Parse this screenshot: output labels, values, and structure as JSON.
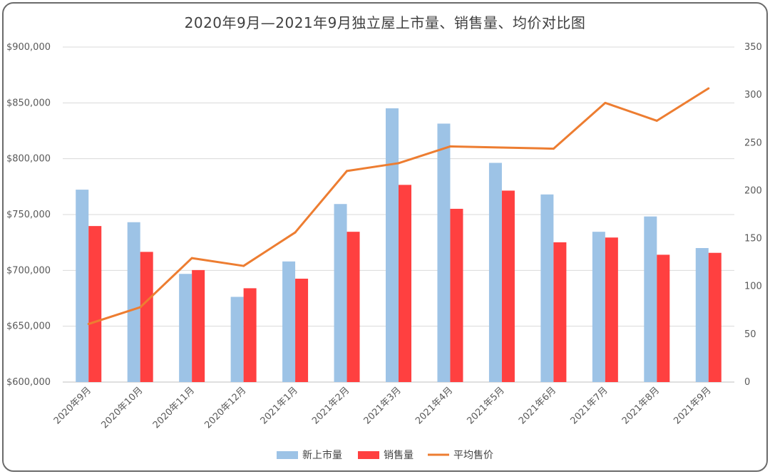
{
  "chart_data": {
    "type": "bar",
    "title": "2020年9月—2021年9月独立屋上市量、销售量、均价对比图",
    "categories": [
      "2020年9月",
      "2020年10月",
      "2020年11月",
      "2020年12月",
      "2021年1月",
      "2021年2月",
      "2021年3月",
      "2021年4月",
      "2021年5月",
      "2021年6月",
      "2021年7月",
      "2021年8月",
      "2021年9月"
    ],
    "series": [
      {
        "name": "新上市量",
        "axis": "right",
        "color": "#9dc3e6",
        "values": [
          201,
          167,
          113,
          89,
          126,
          186,
          286,
          270,
          229,
          196,
          157,
          173,
          140
        ]
      },
      {
        "name": "销售量",
        "axis": "right",
        "color": "#ff4040",
        "values": [
          163,
          136,
          117,
          98,
          108,
          157,
          206,
          181,
          200,
          146,
          151,
          133,
          135
        ]
      },
      {
        "name": "平均售价",
        "axis": "left",
        "type": "line",
        "color": "#ed7d31",
        "values": [
          652000,
          667000,
          711000,
          704000,
          734000,
          789000,
          796000,
          811000,
          810000,
          809000,
          850000,
          834000,
          863000
        ]
      }
    ],
    "y_left": {
      "ylim": [
        600000,
        900000
      ],
      "ticks": [
        "$600,000",
        "$650,000",
        "$700,000",
        "$750,000",
        "$800,000",
        "$850,000",
        "$900,000"
      ]
    },
    "y_right": {
      "ylim": [
        0,
        350
      ],
      "ticks": [
        "0",
        "50",
        "100",
        "150",
        "200",
        "250",
        "300",
        "350"
      ]
    },
    "grid": true,
    "legend_position": "bottom"
  }
}
